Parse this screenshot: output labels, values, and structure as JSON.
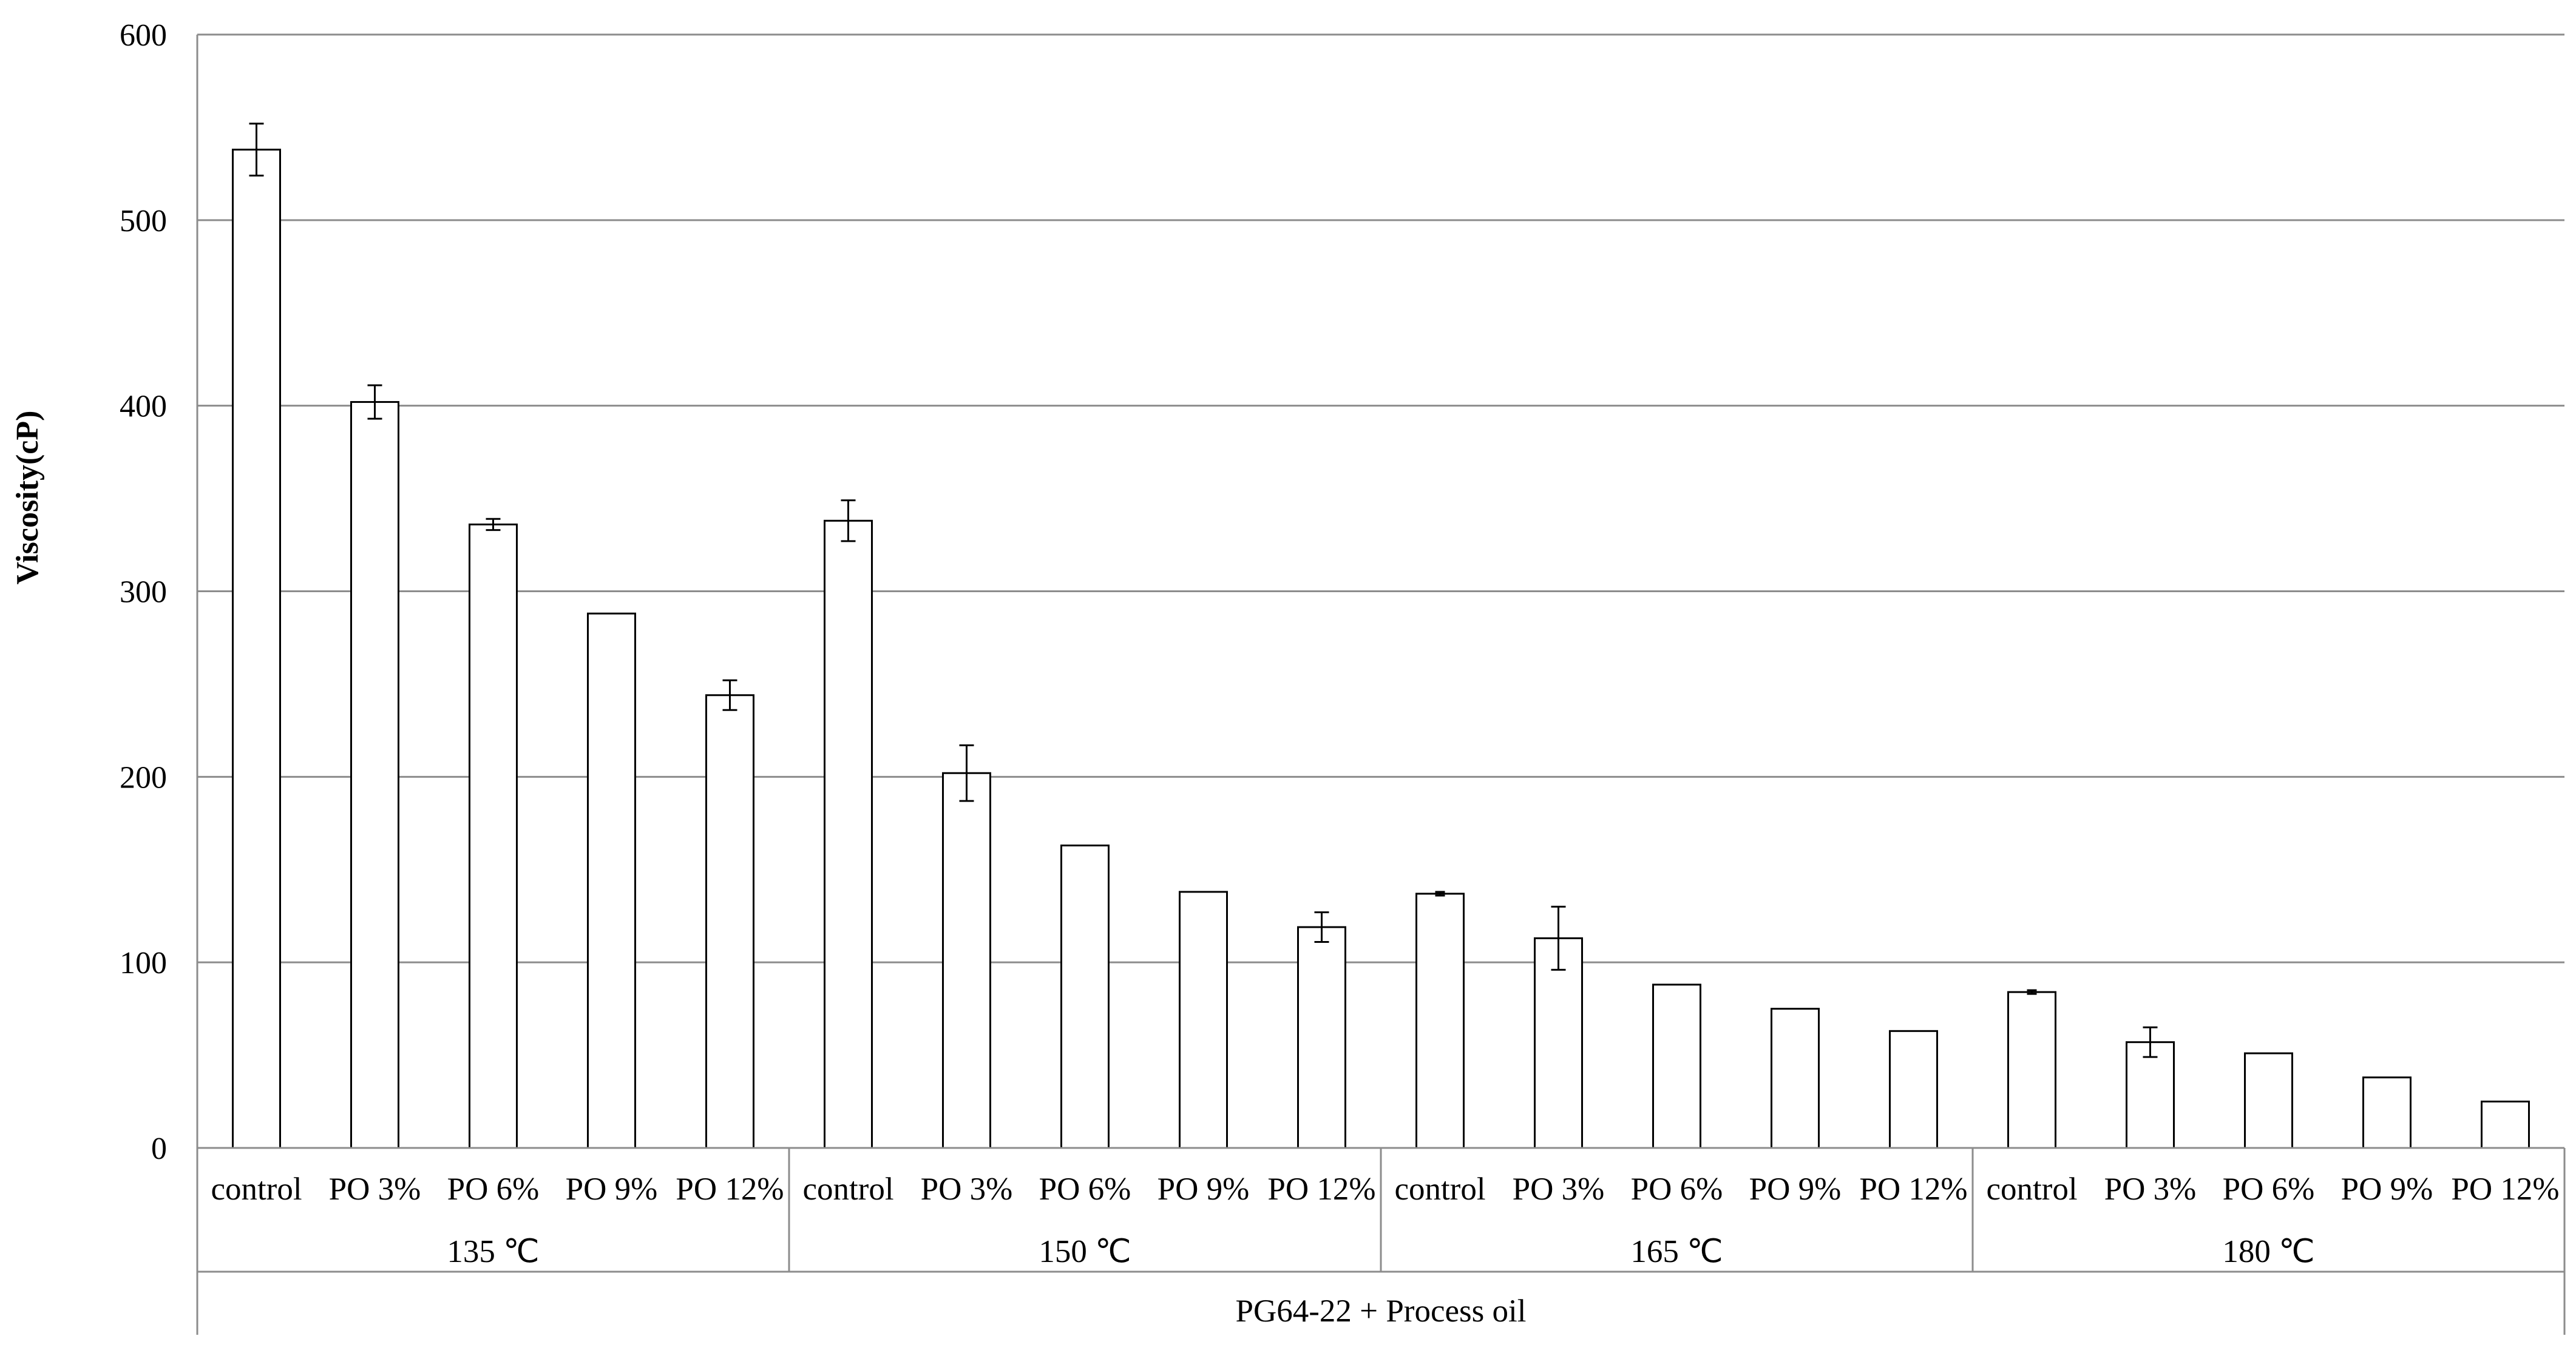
{
  "chart_data": {
    "type": "bar",
    "title": "",
    "ylabel": "Viscosity(cP)",
    "xlabel": "PG64-22 + Process oil",
    "ylim": [
      0,
      600
    ],
    "yticks": [
      0,
      100,
      200,
      300,
      400,
      500,
      600
    ],
    "grid": true,
    "legend": "none",
    "colors": {
      "bar_fill": "#ffffff",
      "bar_stroke": "#000000",
      "grid": "#8c8c8c"
    },
    "groups": [
      {
        "name": "135 ℃",
        "categories": [
          "control",
          "PO 3%",
          "PO 6%",
          "PO 9%",
          "PO 12%"
        ],
        "values": [
          538,
          402,
          336,
          288,
          244
        ],
        "errors": [
          14,
          9,
          3,
          0,
          8
        ]
      },
      {
        "name": "150 ℃",
        "categories": [
          "control",
          "PO 3%",
          "PO 6%",
          "PO 9%",
          "PO 12%"
        ],
        "values": [
          338,
          202,
          163,
          138,
          119
        ],
        "errors": [
          11,
          15,
          0,
          0,
          8
        ]
      },
      {
        "name": "165 ℃",
        "categories": [
          "control",
          "PO 3%",
          "PO 6%",
          "PO 9%",
          "PO 12%"
        ],
        "values": [
          137,
          113,
          88,
          75,
          63
        ],
        "errors": [
          1,
          17,
          0,
          0,
          0
        ]
      },
      {
        "name": "180 ℃",
        "categories": [
          "control",
          "PO 3%",
          "PO 6%",
          "PO 9%",
          "PO 12%"
        ],
        "values": [
          84,
          57,
          51,
          38,
          25
        ],
        "errors": [
          1,
          8,
          0,
          0,
          0
        ]
      }
    ]
  }
}
